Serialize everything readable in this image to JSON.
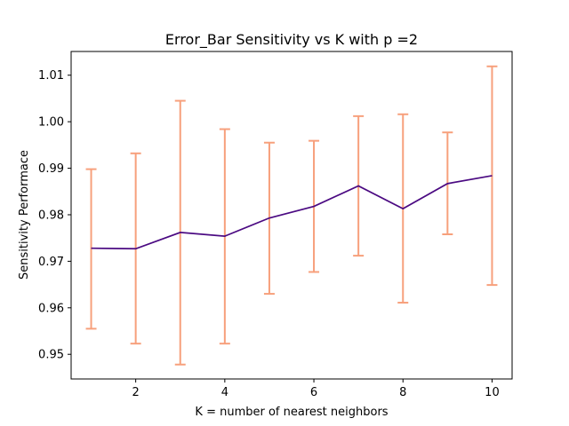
{
  "chart_data": {
    "type": "line",
    "title": "Error_Bar Sensitivity vs K with p =2",
    "xlabel": "K = number of nearest neighbors",
    "ylabel": "Sensitivity Performace",
    "x": [
      1,
      2,
      3,
      4,
      5,
      6,
      7,
      8,
      9,
      10
    ],
    "series": [
      {
        "values": [
          0.9728,
          0.9727,
          0.9762,
          0.9754,
          0.9793,
          0.9818,
          0.9862,
          0.9813,
          0.9867,
          0.9884
        ],
        "lower": [
          0.9555,
          0.9523,
          0.9478,
          0.9523,
          0.963,
          0.9677,
          0.9712,
          0.9611,
          0.9758,
          0.9649
        ],
        "upper": [
          0.9898,
          0.9932,
          1.0045,
          0.9984,
          0.9955,
          0.9959,
          1.0012,
          1.0016,
          0.9977,
          1.0119
        ],
        "line_color": "#4b0a82",
        "errorbar_color": "#f7a07c"
      }
    ],
    "xlim": [
      0.55,
      10.45
    ],
    "ylim": [
      0.9447,
      1.0151
    ],
    "xticks": [
      2,
      4,
      6,
      8,
      10
    ],
    "yticks": [
      0.95,
      0.96,
      0.97,
      0.98,
      0.99,
      1.0,
      1.01
    ],
    "ytick_labels": [
      "0.95",
      "0.96",
      "0.97",
      "0.98",
      "0.99",
      "1.00",
      "1.01"
    ],
    "grid": false,
    "legend": false
  }
}
